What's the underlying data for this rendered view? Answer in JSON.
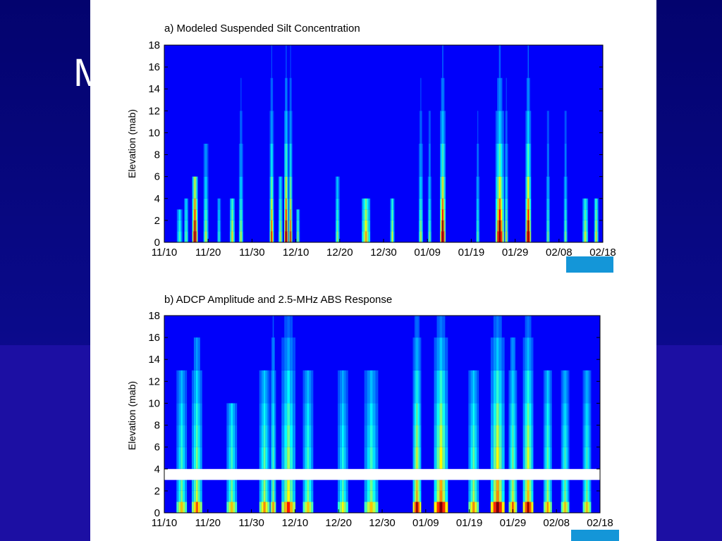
{
  "slide": {
    "title_fragment": "M",
    "background_color": "#0a0a8a",
    "accent_box_color": "#1496d8"
  },
  "chart_data": [
    {
      "type": "heatmap",
      "title": "a) Modeled Suspended Silt Concentration",
      "xlabel": "",
      "ylabel": "Elevation (mab)",
      "x_ticks": [
        "11/10",
        "11/20",
        "11/30",
        "12/10",
        "12/20",
        "12/30",
        "01/09",
        "01/19",
        "01/29",
        "02/08",
        "02/18"
      ],
      "y_ticks": [
        0,
        2,
        4,
        6,
        8,
        10,
        12,
        14,
        16,
        18
      ],
      "ylim": [
        0,
        18
      ],
      "xlim_days": [
        0,
        100
      ],
      "colormap": "jet",
      "events": [
        {
          "day": 3.5,
          "width": 0.8,
          "peak": 0.3,
          "height": 3.0
        },
        {
          "day": 5.0,
          "width": 0.6,
          "peak": 0.35,
          "height": 4.0
        },
        {
          "day": 7.0,
          "width": 0.8,
          "peak": 0.95,
          "height": 7.0
        },
        {
          "day": 9.5,
          "width": 0.7,
          "peak": 0.45,
          "height": 10.0
        },
        {
          "day": 12.5,
          "width": 0.5,
          "peak": 0.3,
          "height": 4.0
        },
        {
          "day": 15.5,
          "width": 0.7,
          "peak": 0.5,
          "height": 3.5
        },
        {
          "day": 17.5,
          "width": 0.6,
          "peak": 0.45,
          "height": 18.0
        },
        {
          "day": 24.5,
          "width": 0.6,
          "peak": 0.75,
          "height": 18.0
        },
        {
          "day": 26.5,
          "width": 0.6,
          "peak": 0.45,
          "height": 5.0
        },
        {
          "day": 27.8,
          "width": 0.6,
          "peak": 1.0,
          "height": 18.0
        },
        {
          "day": 28.8,
          "width": 0.5,
          "peak": 0.8,
          "height": 18.0
        },
        {
          "day": 30.5,
          "width": 0.5,
          "peak": 0.4,
          "height": 3.0
        },
        {
          "day": 39.5,
          "width": 0.6,
          "peak": 0.4,
          "height": 5.0
        },
        {
          "day": 46.0,
          "width": 1.2,
          "peak": 0.55,
          "height": 4.0
        },
        {
          "day": 52.0,
          "width": 0.6,
          "peak": 0.45,
          "height": 4.0
        },
        {
          "day": 58.5,
          "width": 0.6,
          "peak": 0.45,
          "height": 18.0
        },
        {
          "day": 60.5,
          "width": 0.5,
          "peak": 0.4,
          "height": 18.0
        },
        {
          "day": 63.5,
          "width": 0.8,
          "peak": 1.0,
          "height": 18.0
        },
        {
          "day": 71.5,
          "width": 0.5,
          "peak": 0.35,
          "height": 18.0
        },
        {
          "day": 76.5,
          "width": 1.2,
          "peak": 1.0,
          "height": 18.0
        },
        {
          "day": 78.0,
          "width": 0.5,
          "peak": 0.5,
          "height": 18.0
        },
        {
          "day": 83.0,
          "width": 0.8,
          "peak": 1.0,
          "height": 18.0
        },
        {
          "day": 87.5,
          "width": 0.5,
          "peak": 0.4,
          "height": 18.0
        },
        {
          "day": 91.5,
          "width": 0.5,
          "peak": 0.4,
          "height": 18.0
        },
        {
          "day": 96.0,
          "width": 0.8,
          "peak": 0.45,
          "height": 4.0
        },
        {
          "day": 98.5,
          "width": 0.6,
          "peak": 0.5,
          "height": 4.0
        }
      ]
    },
    {
      "type": "heatmap",
      "title": "b) ADCP Amplitude and 2.5-MHz ABS Response",
      "xlabel": "",
      "ylabel": "Elevation (mab)",
      "x_ticks": [
        "11/10",
        "11/20",
        "11/30",
        "12/10",
        "12/20",
        "12/30",
        "01/09",
        "01/19",
        "01/29",
        "02/08",
        "02/18"
      ],
      "y_ticks": [
        0,
        2,
        4,
        6,
        8,
        10,
        12,
        14,
        16,
        18
      ],
      "ylim": [
        0,
        18
      ],
      "xlim_days": [
        0,
        100
      ],
      "colormap": "jet",
      "no_data_band_mab": [
        3.0,
        4.0
      ],
      "events": [
        {
          "day": 4.0,
          "width": 1.5,
          "peak": 0.45,
          "height": 12.0
        },
        {
          "day": 7.5,
          "width": 1.5,
          "peak": 0.55,
          "height": 16.0
        },
        {
          "day": 15.5,
          "width": 1.5,
          "peak": 0.45,
          "height": 10.0
        },
        {
          "day": 23.0,
          "width": 1.5,
          "peak": 0.5,
          "height": 14.0
        },
        {
          "day": 25.0,
          "width": 0.8,
          "peak": 0.5,
          "height": 18.0
        },
        {
          "day": 28.5,
          "width": 2.0,
          "peak": 0.6,
          "height": 18.0
        },
        {
          "day": 33.0,
          "width": 1.5,
          "peak": 0.45,
          "height": 12.0
        },
        {
          "day": 41.0,
          "width": 1.5,
          "peak": 0.4,
          "height": 12.0
        },
        {
          "day": 47.5,
          "width": 2.0,
          "peak": 0.45,
          "height": 12.0
        },
        {
          "day": 58.0,
          "width": 1.2,
          "peak": 0.7,
          "height": 18.0
        },
        {
          "day": 63.5,
          "width": 2.0,
          "peak": 0.75,
          "height": 18.0
        },
        {
          "day": 71.0,
          "width": 1.5,
          "peak": 0.5,
          "height": 14.0
        },
        {
          "day": 76.5,
          "width": 2.0,
          "peak": 0.75,
          "height": 18.0
        },
        {
          "day": 80.0,
          "width": 1.2,
          "peak": 0.55,
          "height": 16.0
        },
        {
          "day": 83.5,
          "width": 1.5,
          "peak": 0.7,
          "height": 18.0
        },
        {
          "day": 88.0,
          "width": 1.2,
          "peak": 0.5,
          "height": 14.0
        },
        {
          "day": 92.0,
          "width": 1.2,
          "peak": 0.45,
          "height": 12.0
        },
        {
          "day": 97.0,
          "width": 1.2,
          "peak": 0.45,
          "height": 12.0
        }
      ]
    }
  ]
}
